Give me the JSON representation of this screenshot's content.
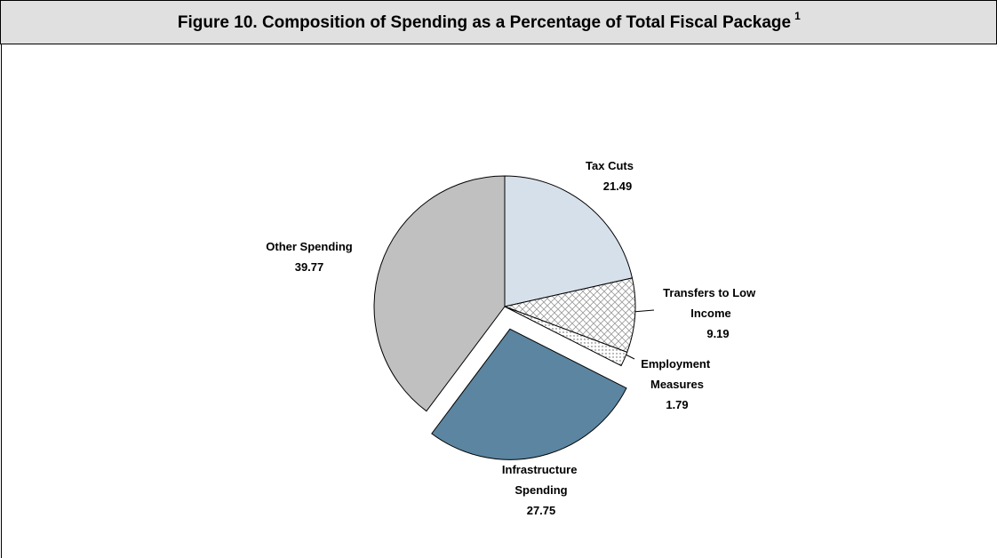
{
  "chart_data": {
    "type": "pie",
    "title": "Figure 10. Composition of Spending as a Percentage of Total Fiscal Package",
    "title_note": "1",
    "categories": [
      "Tax Cuts",
      "Transfers to Low Income",
      "Employment Measures",
      "Infrastructure Spending",
      "Other Spending"
    ],
    "values": [
      21.49,
      9.19,
      1.79,
      27.75,
      39.77
    ],
    "colors": [
      "#d6e0ea",
      "#ffffff",
      "#ffffff",
      "#5b85a0",
      "#c0c0c0"
    ],
    "patterns": [
      null,
      "crosshatch",
      "dots",
      null,
      null
    ],
    "explode": [
      false,
      false,
      false,
      true,
      false
    ]
  }
}
